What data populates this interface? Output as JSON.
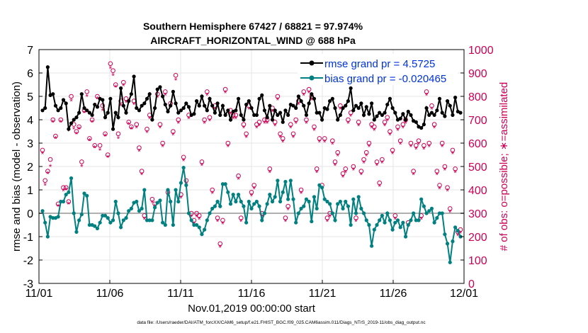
{
  "chart_data": {
    "type": "line",
    "title_line1": "Southern Hemisphere 67427 / 68821 = 97.974%",
    "title_line2": "AIRCRAFT_HORIZONTAL_WIND @ 688 hPa",
    "xlabel": "Nov.01,2019 00:00:00 start",
    "ylabel_left": "rmse and bias (model - observation)",
    "ylabel_right": "# of obs: o=possible; ∗=assimilated",
    "footnote": "data file: /Users/raeder/DAI/ATM_forcXX/CAM6_setup/f.e21.FHIST_BGC.f09_025.CAM6assim.011/Diags_NTrS_2019-11/obs_diag_output.nc",
    "x_ticks": [
      "11/01",
      "11/06",
      "11/11",
      "11/16",
      "11/21",
      "11/26",
      "12/01"
    ],
    "y_left_ticks": [
      "-3",
      "-2",
      "-1",
      "0",
      "1",
      "2",
      "3",
      "4",
      "5",
      "6",
      "7"
    ],
    "y_right_ticks": [
      "0",
      "100",
      "200",
      "300",
      "400",
      "500",
      "600",
      "700",
      "800",
      "900",
      "1000"
    ],
    "xlim_days": [
      0,
      30
    ],
    "ylim_left": [
      -3,
      7
    ],
    "ylim_right": [
      0,
      1000
    ],
    "legend": [
      {
        "label": "rmse grand pr = 4.5725",
        "color": "#000000"
      },
      {
        "label": "bias grand pr = -0.020465",
        "color": "#008080"
      }
    ],
    "colors": {
      "rmse": "#000000",
      "bias": "#008080",
      "obs": "#cc0055",
      "zero_line": "#b0b0b0",
      "legend_text": "#0033dd"
    },
    "series": [
      {
        "name": "rmse",
        "values": [
          4.4,
          4.5,
          6.25,
          5.05,
          5.1,
          4.6,
          4.4,
          4.5,
          4.85,
          4.7,
          3.6,
          3.85,
          4.0,
          4.1,
          4.3,
          5.1,
          4.5,
          4.4,
          4.3,
          4.2,
          4.65,
          4.55,
          4.9,
          4.85,
          4.1,
          4.3,
          4.9,
          3.6,
          4.3,
          4.1,
          5.35,
          4.6,
          4.3,
          4.8,
          5.1,
          5.85,
          4.5,
          4.4,
          4.6,
          4.7,
          4.9,
          5.1,
          4.0,
          4.5,
          5.3,
          5.4,
          5.0,
          4.65,
          4.35,
          4.6,
          5.2,
          4.7,
          4.3,
          4.4,
          4.5,
          4.7,
          4.55,
          4.2,
          4.25,
          4.8,
          4.6,
          5.0,
          4.6,
          4.4,
          4.9,
          4.6,
          4.3,
          4.7,
          4.2,
          4.6,
          4.2,
          4.4,
          4.0,
          4.35,
          4.4,
          4.9,
          4.2,
          4.0,
          4.65,
          4.8,
          4.5,
          4.2,
          4.2,
          4.9,
          5.05,
          4.4,
          4.1,
          4.6,
          4.0,
          4.4,
          4.2,
          4.3,
          3.9,
          4.4,
          4.2,
          4.65,
          4.6,
          4.5,
          5.0,
          4.8,
          4.6,
          4.2,
          4.7,
          5.1,
          4.9,
          4.3,
          4.3,
          4.0,
          4.5,
          4.45,
          4.8,
          4.9,
          4.5,
          4.0,
          4.2,
          4.5,
          4.6,
          4.8,
          5.35,
          4.4,
          4.6,
          4.5,
          4.7,
          4.2,
          4.55,
          4.25,
          4.7,
          4.0,
          4.15,
          4.3,
          4.2,
          4.3,
          4.65,
          4.9,
          4.5,
          4.3,
          4.0,
          4.05,
          4.25,
          4.0,
          4.35,
          4.2,
          3.95,
          3.9,
          3.7,
          3.65,
          3.8,
          4.5,
          4.2,
          4.3,
          4.2,
          4.4,
          4.9,
          4.3,
          4.15,
          4.8,
          4.6,
          4.2,
          4.95,
          4.35,
          4.3
        ]
      },
      {
        "name": "bias",
        "values": [
          0.1,
          -0.4,
          -1.0,
          -0.15,
          -0.2,
          -0.2,
          -0.15,
          0.5,
          0.5,
          0.8,
          0.9,
          1.5,
          0.0,
          -0.8,
          -0.3,
          -0.05,
          0.85,
          0.75,
          -0.5,
          -0.5,
          -0.55,
          -0.65,
          -0.4,
          -0.1,
          -0.1,
          -0.2,
          -0.4,
          -0.3,
          0.5,
          0.0,
          -0.6,
          -0.3,
          -0.2,
          0.1,
          0.2,
          0.45,
          0.5,
          0.1,
          0.2,
          1.0,
          -0.3,
          -0.3,
          -0.3,
          0.25,
          0.45,
          0.55,
          -0.4,
          -0.5,
          1.0,
          0.5,
          -0.5,
          1.0,
          0.5,
          1.3,
          1.95,
          1.2,
          0.0,
          -0.3,
          -0.5,
          -0.5,
          -0.6,
          -0.9,
          -0.7,
          -0.3,
          0.0,
          0.2,
          0.3,
          0.5,
          0.3,
          1.25,
          1.25,
          0.9,
          0.4,
          0.8,
          0.5,
          0.8,
          0.5,
          0.3,
          -0.4,
          0.5,
          0.2,
          0.4,
          0.5,
          0.3,
          -0.3,
          0.0,
          0.4,
          0.8,
          0.5,
          0.7,
          1.4,
          0.5,
          0.9,
          1.35,
          0.6,
          1.4,
          0.6,
          -0.4,
          0.0,
          0.2,
          0.3,
          0.6,
          0.5,
          -0.35,
          0.7,
          0.2,
          1.2,
          1.1,
          0.6,
          0.5,
          0.4,
          0.0,
          -0.3,
          0.4,
          0.5,
          0.2,
          0.5,
          0.3,
          -0.5,
          0.6,
          0.0,
          0.7,
          0.2,
          0.0,
          -0.3,
          -0.5,
          -1.4,
          -0.7,
          -0.5,
          -0.3,
          -0.1,
          -0.4,
          0.0,
          -0.3,
          -0.7,
          -0.4,
          -0.3,
          -0.6,
          -0.4,
          -1.0,
          -0.5,
          -0.3,
          0.0,
          -0.3,
          -0.3,
          0.6,
          0.3,
          0.0,
          0.1,
          0.2,
          -0.4,
          -0.2,
          0.0,
          0.0,
          -0.9,
          -1.3,
          -2.1,
          -1.2,
          -0.6,
          -0.75,
          -1.0
        ]
      },
      {
        "name": "obs_possible",
        "values": [
          570,
          440,
          480,
          530,
          700,
          630,
          340,
          700,
          410,
          410,
          350,
          800,
          680,
          650,
          670,
          520,
          740,
          820,
          620,
          700,
          590,
          800,
          590,
          760,
          640,
          550,
          940,
          910,
          850,
          640,
          780,
          860,
          790,
          690,
          670,
          780,
          680,
          580,
          480,
          290,
          660,
          720,
          360,
          340,
          810,
          680,
          600,
          820,
          390,
          770,
          650,
          890,
          700,
          380,
          540,
          440,
          720,
          300,
          270,
          300,
          290,
          520,
          700,
          820,
          710,
          400,
          760,
          280,
          170,
          270,
          830,
          600,
          740,
          720,
          720,
          460,
          280,
          680,
          640,
          760,
          390,
          420,
          680,
          690,
          300,
          700,
          700,
          490,
          750,
          690,
          800,
          640,
          620,
          280,
          330,
          680,
          640,
          700,
          780,
          400,
          820,
          700,
          830,
          800,
          670,
          490,
          620,
          420,
          620,
          280,
          300,
          610,
          520,
          560,
          760,
          470,
          490,
          700,
          730,
          500,
          280,
          690,
          480,
          530,
          560,
          600,
          680,
          670,
          520,
          430,
          530,
          690,
          710,
          650,
          570,
          290,
          670,
          610,
          680,
          700,
          260,
          600,
          480,
          590,
          610,
          290,
          590,
          820,
          600,
          760,
          680,
          480,
          420,
          600,
          500,
          410,
          320,
          570,
          490,
          220,
          230
        ]
      },
      {
        "name": "obs_assimilated",
        "values": [
          555,
          420,
          470,
          500,
          690,
          620,
          330,
          690,
          395,
          400,
          340,
          780,
          660,
          640,
          660,
          500,
          730,
          800,
          610,
          690,
          580,
          790,
          570,
          740,
          630,
          540,
          920,
          890,
          840,
          620,
          760,
          845,
          775,
          680,
          660,
          765,
          665,
          565,
          465,
          275,
          645,
          705,
          345,
          330,
          795,
          665,
          585,
          805,
          375,
          755,
          635,
          870,
          685,
          365,
          525,
          425,
          705,
          285,
          255,
          285,
          275,
          505,
          685,
          805,
          695,
          385,
          745,
          265,
          155,
          255,
          815,
          585,
          725,
          705,
          705,
          445,
          265,
          665,
          625,
          745,
          375,
          405,
          665,
          675,
          285,
          685,
          685,
          475,
          735,
          675,
          785,
          625,
          605,
          265,
          315,
          665,
          625,
          685,
          765,
          385,
          805,
          685,
          815,
          785,
          655,
          475,
          605,
          405,
          605,
          265,
          285,
          595,
          505,
          545,
          745,
          455,
          475,
          685,
          715,
          485,
          265,
          675,
          465,
          515,
          545,
          585,
          665,
          655,
          505,
          415,
          515,
          675,
          695,
          635,
          555,
          275,
          655,
          595,
          665,
          685,
          245,
          585,
          465,
          575,
          595,
          275,
          575,
          805,
          585,
          745,
          665,
          465,
          405,
          585,
          485,
          395,
          305,
          555,
          475,
          205,
          215
        ]
      }
    ]
  }
}
